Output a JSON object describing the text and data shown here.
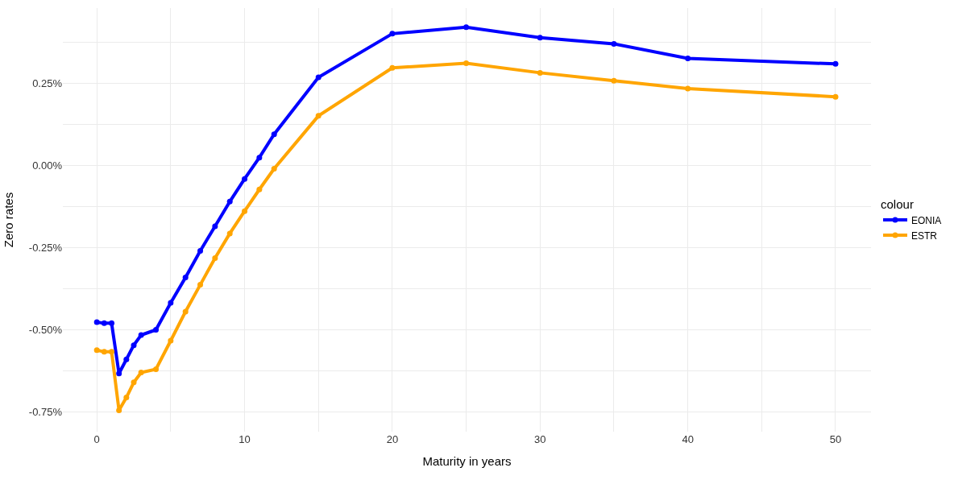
{
  "chart_data": {
    "type": "line",
    "xlabel": "Maturity in years",
    "ylabel": "Zero rates",
    "legend_title": "colour",
    "x": [
      0,
      0.5,
      1,
      1.5,
      2,
      2.5,
      3,
      4,
      5,
      6,
      7,
      8,
      9,
      10,
      11,
      12,
      15,
      20,
      25,
      30,
      35,
      40,
      50
    ],
    "series": [
      {
        "name": "EONIA",
        "color": "#0000ff",
        "values": [
          -0.477,
          -0.48,
          -0.48,
          -0.633,
          -0.59,
          -0.547,
          -0.516,
          -0.5,
          -0.418,
          -0.341,
          -0.26,
          -0.185,
          -0.11,
          -0.041,
          0.024,
          0.095,
          0.268,
          0.401,
          0.421,
          0.389,
          0.37,
          0.326,
          0.309
        ]
      },
      {
        "name": "ESTR",
        "color": "#ffa500",
        "values": [
          -0.562,
          -0.567,
          -0.567,
          -0.745,
          -0.706,
          -0.66,
          -0.63,
          -0.62,
          -0.533,
          -0.445,
          -0.363,
          -0.282,
          -0.207,
          -0.139,
          -0.073,
          -0.01,
          0.151,
          0.297,
          0.311,
          0.282,
          0.258,
          0.234,
          0.209
        ]
      }
    ],
    "xlim": [
      -2.3,
      52.4
    ],
    "ylim": [
      -0.81,
      0.479
    ],
    "xticks": [
      0,
      {
        "value": 5,
        "label": null
      },
      10,
      {
        "value": 15,
        "label": null
      },
      20,
      {
        "value": 25,
        "label": null
      },
      30,
      {
        "value": 35,
        "label": null
      },
      40,
      {
        "value": 45,
        "label": null
      },
      50
    ],
    "yticks": [
      {
        "value": -0.75,
        "label": "-0.75%"
      },
      {
        "value": -0.625,
        "label": null
      },
      {
        "value": -0.5,
        "label": "-0.50%"
      },
      {
        "value": -0.375,
        "label": null
      },
      {
        "value": -0.25,
        "label": "-0.25%"
      },
      {
        "value": -0.125,
        "label": null
      },
      {
        "value": 0,
        "label": "0.00%"
      },
      {
        "value": 0.125,
        "label": null
      },
      {
        "value": 0.25,
        "label": "0.25%"
      },
      {
        "value": 0.375,
        "label": null
      }
    ],
    "grid": true,
    "legend": "right",
    "marker": "circle",
    "line_style": "solid"
  }
}
